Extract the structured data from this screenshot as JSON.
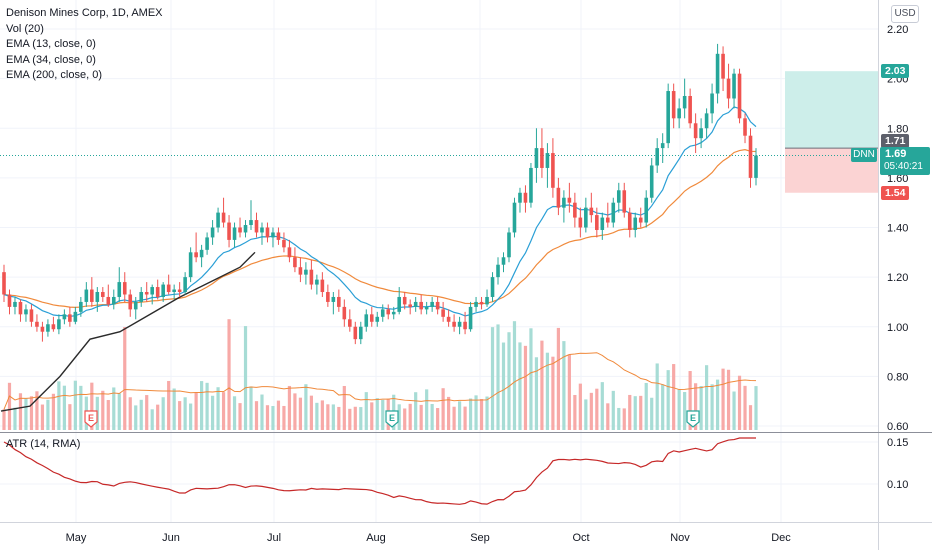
{
  "header": {
    "title": "Denison Mines Corp, 1D, AMEX",
    "indicators": [
      "Vol (20)",
      "EMA (13, close, 0)",
      "EMA (34, close, 0)",
      "EMA (200, close, 0)"
    ],
    "atr_label": "ATR (14, RMA)",
    "currency": "USD"
  },
  "price_axis": {
    "ticks": [
      "2.20",
      "2.00",
      "1.80",
      "1.60",
      "1.40",
      "1.20",
      "1.00",
      "0.80",
      "0.60"
    ]
  },
  "atr_axis": {
    "ticks": [
      "0.15",
      "0.10"
    ]
  },
  "time_axis": {
    "ticks": [
      "May",
      "Jun",
      "Jul",
      "Aug",
      "Sep",
      "Oct",
      "Nov",
      "Dec"
    ]
  },
  "price_tags": {
    "target": "2.03",
    "ema_value": "1.71",
    "stop": "1.54",
    "symbol": "DNN",
    "last_price": "1.69",
    "countdown": "05:40:21"
  },
  "earnings_markers": [
    "E",
    "E",
    "E"
  ],
  "colors": {
    "up": "#26a69a",
    "down": "#ef5350",
    "ema13": "#2a9fd6",
    "ema34": "#f08a3c",
    "ema200": "#2b2b2b",
    "atr": "#c62828",
    "target_zone": "#cdeeea",
    "stop_zone": "#fbd3d3"
  },
  "chart_data": {
    "type": "candlestick",
    "symbol": "DNN",
    "timeframe": "1D",
    "x_range": [
      "2021-04-01",
      "2021-11-23"
    ],
    "ylim": [
      0.6,
      2.25
    ],
    "candles_ohlc": [
      [
        1.22,
        1.25,
        1.1,
        1.13
      ],
      [
        1.13,
        1.15,
        1.05,
        1.08
      ],
      [
        1.08,
        1.12,
        1.05,
        1.1
      ],
      [
        1.1,
        1.11,
        1.02,
        1.05
      ],
      [
        1.05,
        1.09,
        1.02,
        1.07
      ],
      [
        1.07,
        1.09,
        1.0,
        1.02
      ],
      [
        1.02,
        1.05,
        0.98,
        1.0
      ],
      [
        1.0,
        1.02,
        0.94,
        0.98
      ],
      [
        0.98,
        1.03,
        0.96,
        1.01
      ],
      [
        1.01,
        1.04,
        0.98,
        0.99
      ],
      [
        0.99,
        1.05,
        0.97,
        1.03
      ],
      [
        1.03,
        1.07,
        1.01,
        1.05
      ],
      [
        1.05,
        1.08,
        1.0,
        1.02
      ],
      [
        1.02,
        1.08,
        1.01,
        1.06
      ],
      [
        1.06,
        1.12,
        1.04,
        1.1
      ],
      [
        1.1,
        1.18,
        1.08,
        1.15
      ],
      [
        1.15,
        1.2,
        1.08,
        1.1
      ],
      [
        1.1,
        1.16,
        1.06,
        1.14
      ],
      [
        1.14,
        1.16,
        1.1,
        1.12
      ],
      [
        1.12,
        1.17,
        1.08,
        1.09
      ],
      [
        1.09,
        1.15,
        1.07,
        1.12
      ],
      [
        1.12,
        1.24,
        1.1,
        1.18
      ],
      [
        1.18,
        1.22,
        1.1,
        1.13
      ],
      [
        1.13,
        1.15,
        1.04,
        1.07
      ],
      [
        1.07,
        1.12,
        1.03,
        1.1
      ],
      [
        1.1,
        1.16,
        1.08,
        1.14
      ],
      [
        1.14,
        1.18,
        1.1,
        1.13
      ],
      [
        1.13,
        1.17,
        1.09,
        1.16
      ],
      [
        1.16,
        1.19,
        1.11,
        1.12
      ],
      [
        1.12,
        1.18,
        1.1,
        1.17
      ],
      [
        1.17,
        1.21,
        1.13,
        1.14
      ],
      [
        1.14,
        1.17,
        1.11,
        1.15
      ],
      [
        1.15,
        1.18,
        1.12,
        1.14
      ],
      [
        1.14,
        1.22,
        1.13,
        1.2
      ],
      [
        1.2,
        1.32,
        1.18,
        1.3
      ],
      [
        1.3,
        1.38,
        1.26,
        1.28
      ],
      [
        1.28,
        1.33,
        1.24,
        1.31
      ],
      [
        1.31,
        1.38,
        1.29,
        1.36
      ],
      [
        1.36,
        1.43,
        1.33,
        1.4
      ],
      [
        1.4,
        1.48,
        1.38,
        1.46
      ],
      [
        1.46,
        1.52,
        1.4,
        1.42
      ],
      [
        1.42,
        1.45,
        1.32,
        1.35
      ],
      [
        1.35,
        1.42,
        1.32,
        1.4
      ],
      [
        1.4,
        1.44,
        1.36,
        1.38
      ],
      [
        1.38,
        1.43,
        1.36,
        1.41
      ],
      [
        1.41,
        1.51,
        1.39,
        1.43
      ],
      [
        1.43,
        1.46,
        1.36,
        1.38
      ],
      [
        1.38,
        1.42,
        1.33,
        1.4
      ],
      [
        1.4,
        1.42,
        1.34,
        1.36
      ],
      [
        1.36,
        1.4,
        1.32,
        1.38
      ],
      [
        1.38,
        1.4,
        1.33,
        1.35
      ],
      [
        1.35,
        1.38,
        1.3,
        1.32
      ],
      [
        1.32,
        1.35,
        1.26,
        1.28
      ],
      [
        1.28,
        1.32,
        1.22,
        1.24
      ],
      [
        1.24,
        1.28,
        1.18,
        1.21
      ],
      [
        1.21,
        1.26,
        1.17,
        1.23
      ],
      [
        1.23,
        1.27,
        1.15,
        1.17
      ],
      [
        1.17,
        1.21,
        1.13,
        1.19
      ],
      [
        1.19,
        1.22,
        1.12,
        1.14
      ],
      [
        1.14,
        1.17,
        1.08,
        1.1
      ],
      [
        1.1,
        1.14,
        1.05,
        1.12
      ],
      [
        1.12,
        1.15,
        1.06,
        1.08
      ],
      [
        1.08,
        1.11,
        1.0,
        1.03
      ],
      [
        1.03,
        1.07,
        0.98,
        1.0
      ],
      [
        1.0,
        1.02,
        0.93,
        0.95
      ],
      [
        0.95,
        1.02,
        0.93,
        1.0
      ],
      [
        1.0,
        1.07,
        0.98,
        1.05
      ],
      [
        1.05,
        1.08,
        1.0,
        1.02
      ],
      [
        1.02,
        1.06,
        1.0,
        1.04
      ],
      [
        1.04,
        1.09,
        1.02,
        1.07
      ],
      [
        1.07,
        1.09,
        1.03,
        1.05
      ],
      [
        1.05,
        1.08,
        1.03,
        1.06
      ],
      [
        1.06,
        1.16,
        1.05,
        1.12
      ],
      [
        1.12,
        1.14,
        1.07,
        1.09
      ],
      [
        1.09,
        1.11,
        1.05,
        1.08
      ],
      [
        1.08,
        1.12,
        1.06,
        1.1
      ],
      [
        1.1,
        1.13,
        1.05,
        1.07
      ],
      [
        1.07,
        1.1,
        1.05,
        1.08
      ],
      [
        1.08,
        1.12,
        1.06,
        1.1
      ],
      [
        1.1,
        1.12,
        1.05,
        1.07
      ],
      [
        1.07,
        1.1,
        1.02,
        1.04
      ],
      [
        1.04,
        1.07,
        1.0,
        1.02
      ],
      [
        1.02,
        1.05,
        0.98,
        1.0
      ],
      [
        1.0,
        1.04,
        0.97,
        1.02
      ],
      [
        1.02,
        1.06,
        0.97,
        0.99
      ],
      [
        0.99,
        1.1,
        0.98,
        1.08
      ],
      [
        1.08,
        1.12,
        1.06,
        1.1
      ],
      [
        1.1,
        1.12,
        1.07,
        1.09
      ],
      [
        1.09,
        1.15,
        1.08,
        1.12
      ],
      [
        1.12,
        1.22,
        1.1,
        1.2
      ],
      [
        1.2,
        1.28,
        1.17,
        1.25
      ],
      [
        1.25,
        1.3,
        1.22,
        1.28
      ],
      [
        1.28,
        1.4,
        1.26,
        1.38
      ],
      [
        1.38,
        1.52,
        1.36,
        1.5
      ],
      [
        1.5,
        1.56,
        1.46,
        1.54
      ],
      [
        1.54,
        1.57,
        1.46,
        1.5
      ],
      [
        1.5,
        1.66,
        1.48,
        1.64
      ],
      [
        1.64,
        1.8,
        1.58,
        1.72
      ],
      [
        1.72,
        1.8,
        1.6,
        1.64
      ],
      [
        1.64,
        1.74,
        1.56,
        1.7
      ],
      [
        1.7,
        1.76,
        1.52,
        1.56
      ],
      [
        1.56,
        1.6,
        1.45,
        1.48
      ],
      [
        1.48,
        1.55,
        1.42,
        1.52
      ],
      [
        1.52,
        1.58,
        1.46,
        1.5
      ],
      [
        1.5,
        1.54,
        1.4,
        1.44
      ],
      [
        1.44,
        1.48,
        1.36,
        1.4
      ],
      [
        1.4,
        1.52,
        1.38,
        1.48
      ],
      [
        1.48,
        1.54,
        1.42,
        1.45
      ],
      [
        1.45,
        1.48,
        1.36,
        1.39
      ],
      [
        1.39,
        1.46,
        1.35,
        1.44
      ],
      [
        1.44,
        1.5,
        1.4,
        1.42
      ],
      [
        1.42,
        1.52,
        1.4,
        1.5
      ],
      [
        1.5,
        1.58,
        1.46,
        1.55
      ],
      [
        1.55,
        1.58,
        1.44,
        1.46
      ],
      [
        1.46,
        1.48,
        1.36,
        1.39
      ],
      [
        1.39,
        1.46,
        1.36,
        1.44
      ],
      [
        1.44,
        1.48,
        1.4,
        1.42
      ],
      [
        1.42,
        1.55,
        1.4,
        1.52
      ],
      [
        1.52,
        1.68,
        1.5,
        1.65
      ],
      [
        1.65,
        1.76,
        1.62,
        1.72
      ],
      [
        1.72,
        1.78,
        1.66,
        1.74
      ],
      [
        1.74,
        1.98,
        1.72,
        1.95
      ],
      [
        1.95,
        1.98,
        1.8,
        1.84
      ],
      [
        1.84,
        1.92,
        1.8,
        1.88
      ],
      [
        1.88,
        2.0,
        1.84,
        1.93
      ],
      [
        1.93,
        1.96,
        1.8,
        1.82
      ],
      [
        1.82,
        1.86,
        1.7,
        1.76
      ],
      [
        1.76,
        1.84,
        1.72,
        1.8
      ],
      [
        1.8,
        1.88,
        1.76,
        1.86
      ],
      [
        1.86,
        1.98,
        1.82,
        1.94
      ],
      [
        1.94,
        2.14,
        1.9,
        2.1
      ],
      [
        2.1,
        2.13,
        1.95,
        2.0
      ],
      [
        2.0,
        2.06,
        1.88,
        1.92
      ],
      [
        1.92,
        2.04,
        1.88,
        2.02
      ],
      [
        2.02,
        2.04,
        1.82,
        1.84
      ],
      [
        1.84,
        1.86,
        1.74,
        1.77
      ],
      [
        1.77,
        1.8,
        1.56,
        1.6
      ],
      [
        1.6,
        1.72,
        1.57,
        1.69
      ]
    ],
    "volume_scale": "relative, 0-1",
    "ema200_points": [
      [
        1,
        0.66
      ],
      [
        30,
        0.68
      ],
      [
        60,
        0.8
      ],
      [
        90,
        0.95
      ],
      [
        120,
        0.98
      ],
      [
        150,
        1.05
      ],
      [
        180,
        1.12
      ],
      [
        210,
        1.18
      ],
      [
        240,
        1.24
      ],
      [
        255,
        1.3
      ]
    ]
  }
}
